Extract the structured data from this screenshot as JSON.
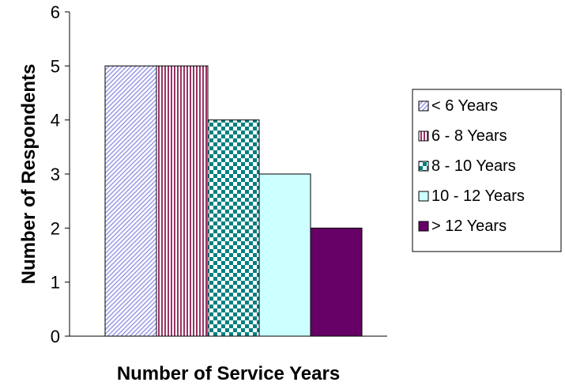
{
  "chart_data": {
    "type": "bar",
    "title": "",
    "xlabel": "Number of Service Years",
    "ylabel": "Number of Respondents",
    "ylim": [
      0,
      6
    ],
    "yticks": [
      "0",
      "1",
      "2",
      "3",
      "4",
      "5",
      "6"
    ],
    "grid": false,
    "legend_position": "right",
    "categories": [
      "< 6 Years",
      "6 - 8 Years",
      "8 - 10 Years",
      "10 - 12 Years",
      "> 12 Years"
    ],
    "values": [
      5,
      5,
      4,
      3,
      2
    ],
    "fills": [
      "diagonal-hatch-lavender",
      "vertical-stripes-maroon",
      "checker-teal",
      "solid-lightcyan",
      "solid-purple"
    ],
    "colors": [
      "#9a9ae6",
      "#993366",
      "#008080",
      "#ccffff",
      "#660066"
    ]
  }
}
